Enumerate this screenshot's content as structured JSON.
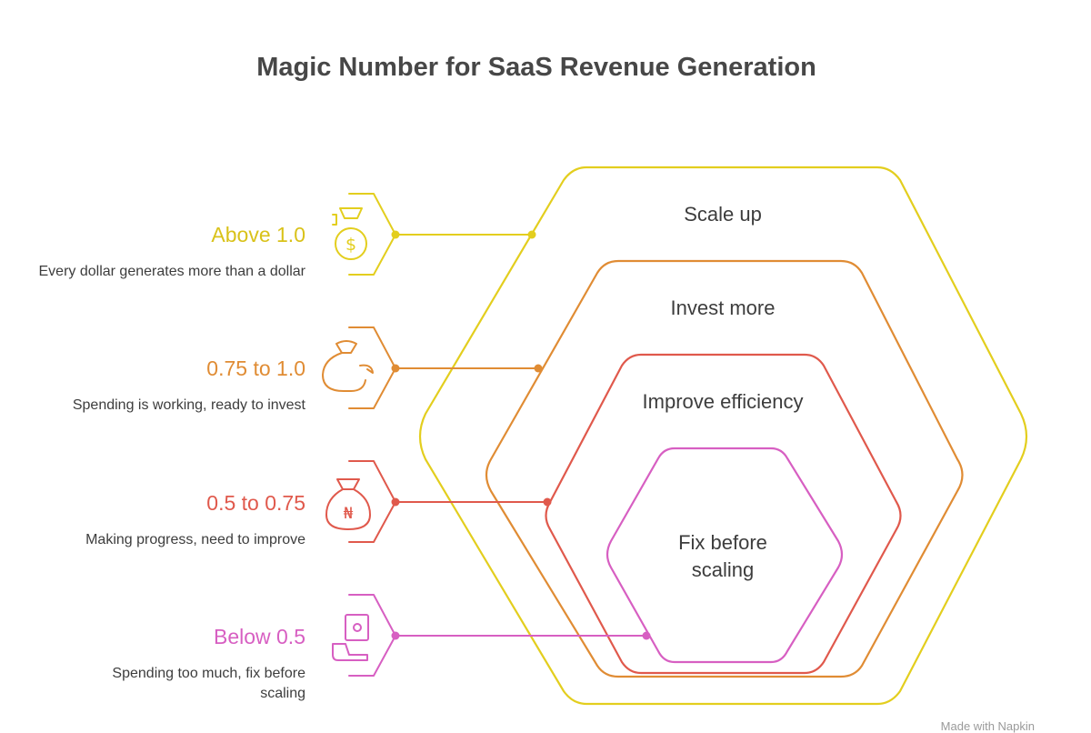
{
  "title": "Magic Number for SaaS Revenue Generation",
  "colors": {
    "yellow": "#e3ce1e",
    "orange": "#e08c34",
    "red": "#e0594c",
    "pink": "#d75fc2"
  },
  "tiers": [
    {
      "label": "Above 1.0",
      "description": "Every dollar generates more than a dollar",
      "hex_text": "Scale up",
      "icon": "money-bag-dollar-icon"
    },
    {
      "label": "0.75 to 1.0",
      "description": "Spending is working, ready to invest",
      "hex_text": "Invest more",
      "icon": "money-bag-arrow-icon"
    },
    {
      "label": "0.5 to 0.75",
      "description": "Making progress, need to improve",
      "hex_text": "Improve efficiency",
      "icon": "money-bag-naira-icon"
    },
    {
      "label": "Below 0.5",
      "description": "Spending too much, fix before scaling",
      "hex_text": "Fix before scaling",
      "icon": "hand-cash-icon"
    }
  ],
  "footer": "Made with Napkin"
}
